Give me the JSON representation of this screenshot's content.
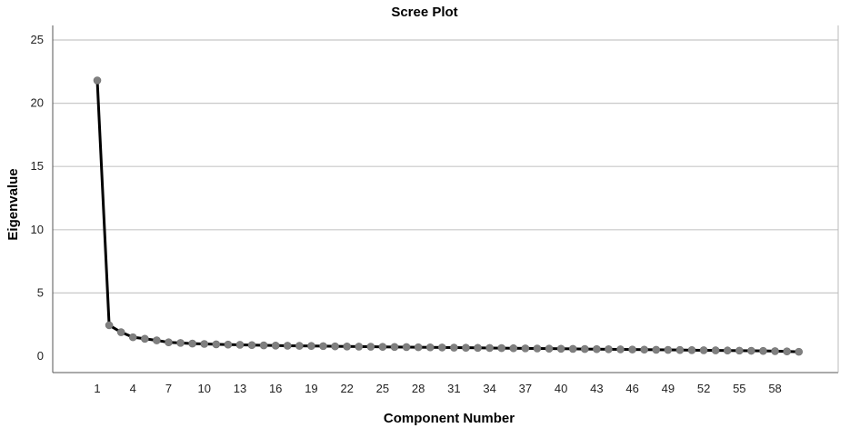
{
  "chart_data": {
    "type": "line",
    "title": "Scree Plot",
    "xlabel": "Component Number",
    "ylabel": "Eigenvalue",
    "ylim": [
      0,
      25
    ],
    "yticks": [
      0,
      5,
      10,
      15,
      20,
      25
    ],
    "xlim": [
      1,
      60
    ],
    "xticks": [
      1,
      4,
      7,
      10,
      13,
      16,
      19,
      22,
      25,
      28,
      31,
      34,
      37,
      40,
      43,
      46,
      49,
      52,
      55,
      58
    ],
    "grid": "horizontal",
    "legend": "none",
    "colors": {
      "line": "#000000",
      "marker": "#808080",
      "grid": "#c8c8c8"
    },
    "x": [
      1,
      2,
      3,
      4,
      5,
      6,
      7,
      8,
      9,
      10,
      11,
      12,
      13,
      14,
      15,
      16,
      17,
      18,
      19,
      20,
      21,
      22,
      23,
      24,
      25,
      26,
      27,
      28,
      29,
      30,
      31,
      32,
      33,
      34,
      35,
      36,
      37,
      38,
      39,
      40,
      41,
      42,
      43,
      44,
      45,
      46,
      47,
      48,
      49,
      50,
      51,
      52,
      53,
      54,
      55,
      56,
      57,
      58,
      59,
      60
    ],
    "series": [
      {
        "values": [
          21.8,
          2.45,
          1.9,
          1.5,
          1.38,
          1.25,
          1.1,
          1.05,
          1.0,
          0.97,
          0.94,
          0.92,
          0.9,
          0.88,
          0.86,
          0.84,
          0.83,
          0.82,
          0.81,
          0.8,
          0.78,
          0.77,
          0.76,
          0.75,
          0.74,
          0.73,
          0.72,
          0.71,
          0.7,
          0.69,
          0.68,
          0.67,
          0.66,
          0.65,
          0.64,
          0.63,
          0.62,
          0.61,
          0.6,
          0.59,
          0.58,
          0.57,
          0.56,
          0.55,
          0.54,
          0.53,
          0.52,
          0.51,
          0.5,
          0.49,
          0.48,
          0.47,
          0.46,
          0.45,
          0.44,
          0.43,
          0.42,
          0.4,
          0.38,
          0.35
        ]
      }
    ]
  }
}
